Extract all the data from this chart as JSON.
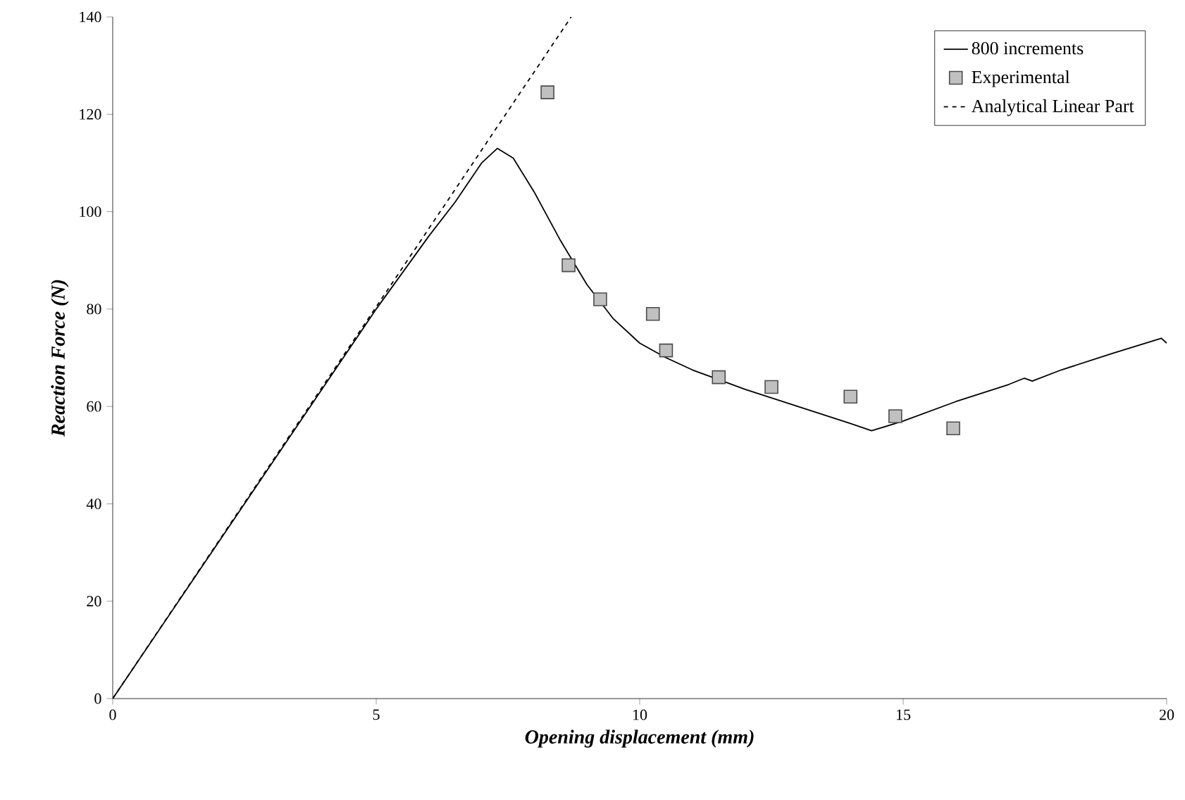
{
  "chart_data": {
    "type": "line",
    "xlabel": "Opening displacement (mm)",
    "ylabel": "Reaction Force (N)",
    "xlim": [
      0,
      20
    ],
    "ylim": [
      0,
      140
    ],
    "xticks": [
      0,
      5,
      10,
      15,
      20
    ],
    "yticks": [
      0,
      20,
      40,
      60,
      80,
      100,
      120,
      140
    ],
    "grid": false,
    "legend": "top right",
    "series": [
      {
        "name": "800 increments",
        "color": "#000000",
        "line_style": "solid",
        "marker": "none",
        "x": [
          0,
          5,
          6,
          6.5,
          7,
          7.3,
          7.6,
          8,
          8.5,
          9,
          9.5,
          10,
          10.5,
          11,
          12,
          13,
          14,
          14.4,
          15,
          16,
          17,
          17.3,
          17.45,
          18,
          19,
          19.9,
          20
        ],
        "values": [
          0,
          80,
          95,
          102,
          110,
          113,
          111,
          104,
          94,
          85,
          78,
          73,
          70,
          67.5,
          63.5,
          60,
          56.5,
          55,
          57,
          61,
          64.5,
          65.8,
          65.2,
          67.5,
          71,
          74,
          73
        ]
      },
      {
        "name": "Experimental",
        "type": "scatter",
        "color": "#c0c0c0",
        "marker": "square",
        "x": [
          8.25,
          8.65,
          9.25,
          10.25,
          10.5,
          11.5,
          12.5,
          14,
          14.85,
          15.95
        ],
        "values": [
          124.5,
          89,
          82,
          79,
          71.5,
          66,
          64,
          62,
          58,
          55.5
        ]
      },
      {
        "name": "Analytical Linear Part",
        "color": "#000000",
        "line_style": "dashed",
        "marker": "none",
        "x": [
          0,
          8.7
        ],
        "values": [
          0,
          140
        ]
      }
    ]
  }
}
